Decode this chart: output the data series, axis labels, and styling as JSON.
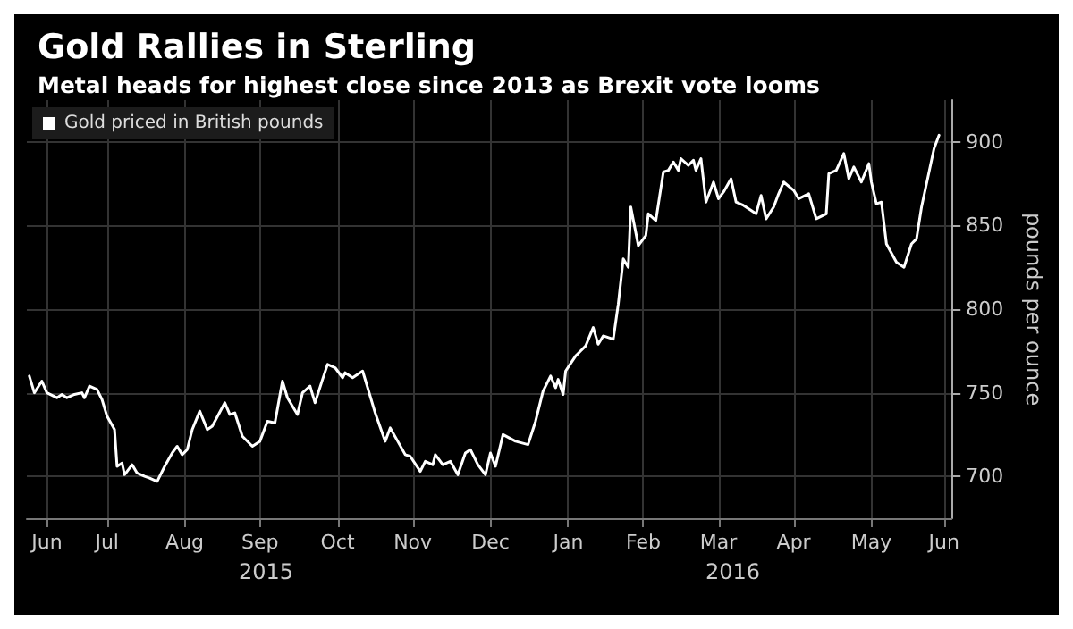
{
  "chart_data": {
    "type": "line",
    "title": "Gold Rallies in Sterling",
    "subtitle": "Metal heads for highest close since 2013 as Brexit vote looms",
    "ylabel": "pounds per ounce",
    "annotations": [
      "2015",
      "2016"
    ],
    "xlim": [
      "2015-06-14",
      "2016-06-17"
    ],
    "xticks": [
      {
        "value": "2015-06-22",
        "label": "Jun"
      },
      {
        "value": "2015-07-16",
        "label": "Jul"
      },
      {
        "value": "2015-08-16",
        "label": "Aug"
      },
      {
        "value": "2015-09-15",
        "label": "Sep"
      },
      {
        "value": "2015-10-16",
        "label": "Oct"
      },
      {
        "value": "2015-11-15",
        "label": "Nov"
      },
      {
        "value": "2015-12-16",
        "label": "Dec"
      },
      {
        "value": "2016-01-16",
        "label": "Jan"
      },
      {
        "value": "2016-02-15",
        "label": "Feb"
      },
      {
        "value": "2016-03-16",
        "label": "Mar"
      },
      {
        "value": "2016-04-15",
        "label": "Apr"
      },
      {
        "value": "2016-05-16",
        "label": "May"
      },
      {
        "value": "2016-06-14",
        "label": "Jun"
      }
    ],
    "ylim": [
      675,
      925
    ],
    "yticks": [
      700,
      750,
      800,
      850,
      900
    ],
    "grid": true,
    "legend": "top left",
    "marker": "none",
    "line_style": "solid",
    "series": [
      {
        "name": "Gold priced in British pounds",
        "color": "#ffffff",
        "x": [
          "2015-06-15",
          "2015-06-17",
          "2015-06-20",
          "2015-06-22",
          "2015-06-26",
          "2015-06-28",
          "2015-06-30",
          "2015-07-03",
          "2015-07-06",
          "2015-07-07",
          "2015-07-09",
          "2015-07-12",
          "2015-07-14",
          "2015-07-16",
          "2015-07-19",
          "2015-07-20",
          "2015-07-22",
          "2015-07-23",
          "2015-07-26",
          "2015-07-28",
          "2015-07-31",
          "2015-08-02",
          "2015-08-05",
          "2015-08-08",
          "2015-08-11",
          "2015-08-13",
          "2015-08-15",
          "2015-08-17",
          "2015-08-19",
          "2015-08-22",
          "2015-08-25",
          "2015-08-27",
          "2015-09-01",
          "2015-09-03",
          "2015-09-05",
          "2015-09-08",
          "2015-09-12",
          "2015-09-15",
          "2015-09-18",
          "2015-09-21",
          "2015-09-24",
          "2015-09-26",
          "2015-09-30",
          "2015-10-02",
          "2015-10-05",
          "2015-10-07",
          "2015-10-10",
          "2015-10-12",
          "2015-10-15",
          "2015-10-18",
          "2015-10-19",
          "2015-10-22",
          "2015-10-26",
          "2015-10-31",
          "2015-11-04",
          "2015-11-06",
          "2015-11-09",
          "2015-11-12",
          "2015-11-14",
          "2015-11-18",
          "2015-11-20",
          "2015-11-23",
          "2015-11-24",
          "2015-11-27",
          "2015-11-30",
          "2015-12-03",
          "2015-12-06",
          "2015-12-08",
          "2015-12-11",
          "2015-12-14",
          "2015-12-16",
          "2015-12-18",
          "2015-12-21",
          "2015-12-26",
          "2015-12-31",
          "2016-01-03",
          "2016-01-06",
          "2016-01-09",
          "2016-01-11",
          "2016-01-12",
          "2016-01-14",
          "2016-01-15",
          "2016-01-19",
          "2016-01-21",
          "2016-01-23",
          "2016-01-26",
          "2016-01-28",
          "2016-01-30",
          "2016-02-03",
          "2016-02-05",
          "2016-02-07",
          "2016-02-09",
          "2016-02-10",
          "2016-02-13",
          "2016-02-16",
          "2016-02-17",
          "2016-02-20",
          "2016-02-23",
          "2016-02-25",
          "2016-02-27",
          "2016-02-29",
          "2016-03-01",
          "2016-03-04",
          "2016-03-06",
          "2016-03-07",
          "2016-03-09",
          "2016-03-11",
          "2016-03-14",
          "2016-03-16",
          "2016-03-18",
          "2016-03-21",
          "2016-03-23",
          "2016-03-26",
          "2016-03-29",
          "2016-03-31",
          "2016-04-02",
          "2016-04-04",
          "2016-04-07",
          "2016-04-09",
          "2016-04-11",
          "2016-04-15",
          "2016-04-17",
          "2016-04-21",
          "2016-04-24",
          "2016-04-28",
          "2016-04-29",
          "2016-05-02",
          "2016-05-05",
          "2016-05-07",
          "2016-05-09",
          "2016-05-12",
          "2016-05-15",
          "2016-05-16",
          "2016-05-18",
          "2016-05-20",
          "2016-05-22",
          "2016-05-26",
          "2016-05-29",
          "2016-06-01",
          "2016-06-03",
          "2016-06-05",
          "2016-06-10",
          "2016-06-12"
        ],
        "values": [
          760,
          750,
          757,
          750,
          747,
          749,
          747,
          749,
          750,
          747,
          754,
          752,
          746,
          736,
          728,
          706,
          708,
          701,
          707,
          702,
          700,
          699,
          697,
          706,
          714,
          718,
          713,
          716,
          728,
          739,
          728,
          730,
          744,
          737,
          738,
          724,
          718,
          721,
          733,
          732,
          757,
          747,
          737,
          750,
          754,
          744,
          758,
          767,
          765,
          759,
          762,
          759,
          763,
          738,
          721,
          729,
          721,
          713,
          712,
          703,
          709,
          707,
          713,
          707,
          709,
          701,
          714,
          716,
          707,
          701,
          714,
          706,
          725,
          721,
          719,
          733,
          751,
          760,
          753,
          758,
          749,
          763,
          772,
          775,
          778,
          789,
          779,
          784,
          782,
          803,
          830,
          825,
          861,
          838,
          844,
          857,
          853,
          882,
          883,
          888,
          883,
          890,
          886,
          889,
          883,
          890,
          864,
          876,
          866,
          870,
          878,
          864,
          862,
          859,
          857,
          868,
          854,
          861,
          869,
          876,
          871,
          866,
          869,
          854,
          857,
          881,
          883,
          893,
          878,
          885,
          876,
          887,
          876,
          863,
          864,
          839,
          828,
          825,
          839,
          842,
          861,
          896,
          904
        ]
      }
    ]
  }
}
